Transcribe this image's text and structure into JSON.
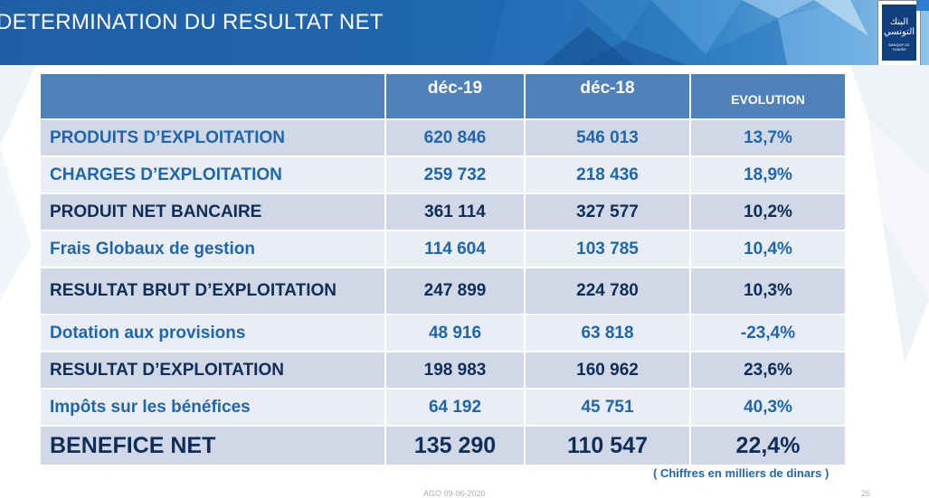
{
  "banner": {
    "title": "DETERMINATION DU RESULTAT NET"
  },
  "logo": {
    "name": "bank-logo"
  },
  "table": {
    "headers": [
      "",
      "déc-19",
      "déc-18",
      "EVOLUTION"
    ],
    "rows": [
      {
        "label": "PRODUITS D’EXPLOITATION",
        "dec19": "620 846",
        "dec18": "546 013",
        "evolution": "13,7%"
      },
      {
        "label": "CHARGES D’EXPLOITATION",
        "dec19": "259 732",
        "dec18": "218 436",
        "evolution": "18,9%"
      },
      {
        "label": "PRODUIT NET BANCAIRE",
        "dec19": "361 114",
        "dec18": "327 577",
        "evolution": "10,2%"
      },
      {
        "label": "Frais Globaux de gestion",
        "dec19": "114 604",
        "dec18": "103 785",
        "evolution": "10,4%"
      },
      {
        "label": "RESULTAT BRUT D’EXPLOITATION",
        "dec19": "247 899",
        "dec18": "224 780",
        "evolution": "10,3%"
      },
      {
        "label": "Dotation aux provisions",
        "dec19": "48 916",
        "dec18": "63 818",
        "evolution": "-23,4%"
      },
      {
        "label": "RESULTAT D’EXPLOITATION",
        "dec19": "198 983",
        "dec18": "160 962",
        "evolution": "23,6%"
      },
      {
        "label": "Impôts sur les bénéfices",
        "dec19": "64 192",
        "dec18": "45 751",
        "evolution": "40,3%"
      },
      {
        "label": "BENEFICE NET",
        "dec19": "135 290",
        "dec18": "110 547",
        "evolution": "22,4%"
      }
    ]
  },
  "note": "( Chiffres en milliers de dinars )",
  "footer": {
    "left": "AGO 09-06-2020",
    "right": "25"
  },
  "colors": {
    "banner": "#1f67b0",
    "header_row": "#4f81bd",
    "row_odd": "#d0d8e8",
    "row_even": "#e9edf4",
    "text_blue": "#1f66ad",
    "text_dark": "#0f2e57"
  }
}
